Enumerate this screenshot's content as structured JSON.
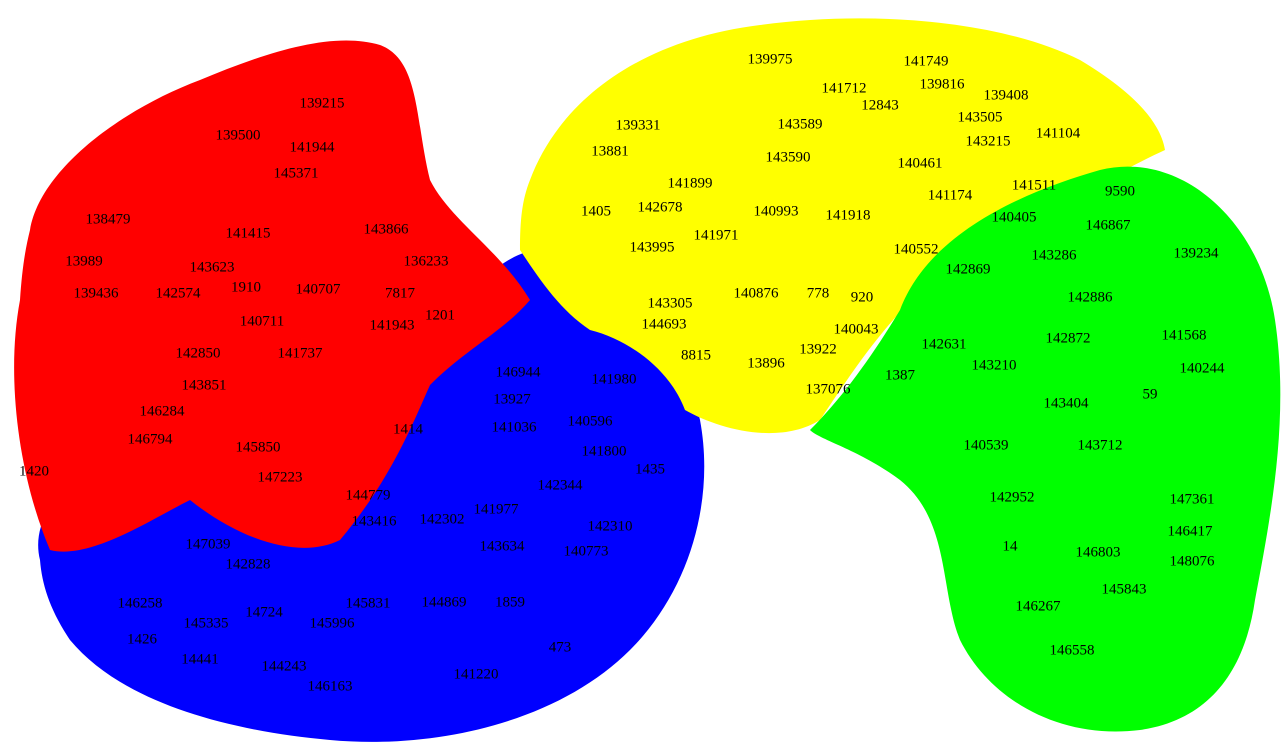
{
  "background": "#ffffff",
  "clusters": [
    {
      "name": "red",
      "color": "#ff0000",
      "labels": [
        "139215",
        "139500",
        "141944",
        "145371",
        "138479",
        "141415",
        "143866",
        "13989",
        "143623",
        "136233",
        "139436",
        "142574",
        "1910",
        "140707",
        "7817",
        "140711",
        "141943",
        "1420",
        "142850",
        "141737",
        "143851",
        "146284",
        "146794",
        "145850",
        "147223",
        "144779",
        "143416",
        "1414",
        "1201"
      ]
    },
    {
      "name": "blue",
      "color": "#0000ff",
      "labels": [
        "146944",
        "141980",
        "13927",
        "140596",
        "141036",
        "141800",
        "142344",
        "141977",
        "142302",
        "142310",
        "143634",
        "140773",
        "147039",
        "142828",
        "146258",
        "145831",
        "144869",
        "1859",
        "145335",
        "14724",
        "145996",
        "1426",
        "14441",
        "144243",
        "146163",
        "141220",
        "473",
        "1435"
      ]
    },
    {
      "name": "yellow",
      "color": "#ffff00",
      "labels": [
        "139975",
        "141749",
        "139816",
        "139408",
        "141712",
        "12843",
        "143505",
        "141104",
        "139331",
        "143589",
        "143215",
        "13881",
        "143590",
        "140461",
        "141899",
        "141174",
        "141511",
        "142678",
        "140993",
        "141918",
        "140405",
        "143995",
        "141971",
        "140552",
        "140876",
        "778",
        "920",
        "143305",
        "144693",
        "140043",
        "13922",
        "13896",
        "137076",
        "1405",
        "1387",
        "8815"
      ]
    },
    {
      "name": "green",
      "color": "#00ff00",
      "labels": [
        "9590",
        "146867",
        "143286",
        "139234",
        "142869",
        "142886",
        "141568",
        "142872",
        "140244",
        "142631",
        "143210",
        "143404",
        "140539",
        "143712",
        "142952",
        "147361",
        "146417",
        "146803",
        "148076",
        "145843",
        "146267",
        "146558",
        "59",
        "14"
      ]
    }
  ]
}
